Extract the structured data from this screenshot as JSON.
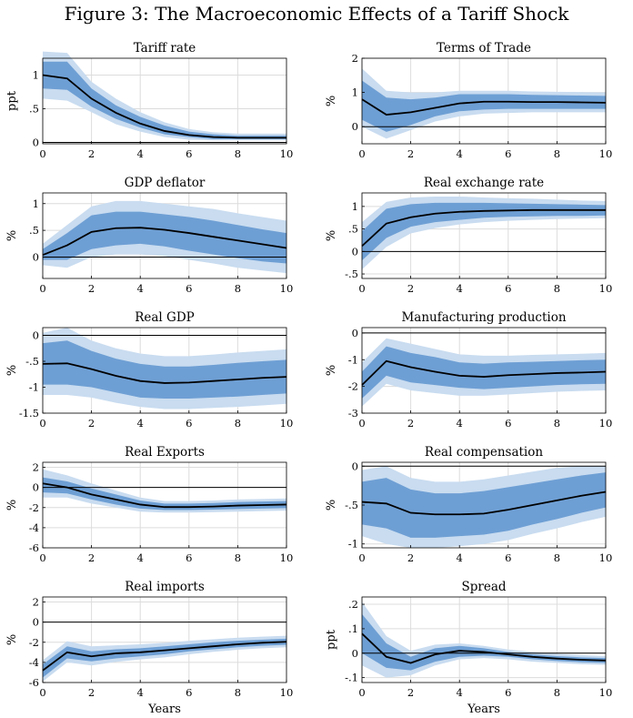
{
  "figure_title": "Figure 3: The Macroeconomic Effects of a Tariff Shock",
  "x_axis_label": "Years",
  "colors": {
    "outer_band": "#c9dcf0",
    "inner_band": "#6e9fd4",
    "line": "#000000",
    "zero_line": "#000000",
    "grid": "#dcdcdc"
  },
  "chart_data": [
    {
      "type": "line",
      "title": "Tariff rate",
      "ylabel": "ppt",
      "ylim": [
        -0.02,
        1.25
      ],
      "yticks": [
        0,
        0.5,
        1
      ],
      "xticks": [
        0,
        2,
        4,
        6,
        8,
        10
      ],
      "grid": true,
      "x": [
        0,
        1,
        2,
        3,
        4,
        5,
        6,
        7,
        8,
        9,
        10
      ],
      "median": [
        1.0,
        0.95,
        0.65,
        0.44,
        0.28,
        0.17,
        0.11,
        0.08,
        0.07,
        0.07,
        0.07
      ],
      "inner_band": {
        "lower": [
          0.8,
          0.78,
          0.53,
          0.35,
          0.22,
          0.12,
          0.08,
          0.05,
          0.05,
          0.05,
          0.05
        ],
        "upper": [
          1.2,
          1.2,
          0.8,
          0.55,
          0.38,
          0.25,
          0.16,
          0.12,
          0.1,
          0.1,
          0.1
        ]
      },
      "outer_band": {
        "lower": [
          0.65,
          0.62,
          0.45,
          0.27,
          0.16,
          0.08,
          0.04,
          0.03,
          0.03,
          0.03,
          0.03
        ],
        "upper": [
          1.35,
          1.33,
          0.9,
          0.65,
          0.45,
          0.3,
          0.2,
          0.15,
          0.13,
          0.13,
          0.13
        ]
      }
    },
    {
      "type": "line",
      "title": "Terms of Trade",
      "ylabel": "%",
      "ylim": [
        -0.5,
        2
      ],
      "yticks": [
        0,
        1,
        2
      ],
      "xticks": [
        0,
        2,
        4,
        6,
        8,
        10
      ],
      "grid": true,
      "x": [
        0,
        1,
        2,
        3,
        4,
        5,
        6,
        7,
        8,
        9,
        10
      ],
      "median": [
        0.8,
        0.35,
        0.42,
        0.55,
        0.68,
        0.73,
        0.73,
        0.72,
        0.72,
        0.71,
        0.7
      ],
      "inner_band": {
        "lower": [
          0.2,
          -0.15,
          0.05,
          0.3,
          0.45,
          0.5,
          0.52,
          0.52,
          0.52,
          0.52,
          0.52
        ],
        "upper": [
          1.35,
          0.85,
          0.8,
          0.85,
          0.95,
          0.95,
          0.95,
          0.93,
          0.92,
          0.91,
          0.9
        ]
      },
      "outer_band": {
        "lower": [
          0.0,
          -0.35,
          -0.1,
          0.15,
          0.3,
          0.38,
          0.4,
          0.42,
          0.42,
          0.42,
          0.42
        ],
        "upper": [
          1.7,
          1.05,
          1.0,
          1.0,
          1.05,
          1.05,
          1.05,
          1.03,
          1.02,
          1.01,
          1.0
        ]
      }
    },
    {
      "type": "line",
      "title": "GDP deflator",
      "ylabel": "%",
      "ylim": [
        -0.4,
        1.2
      ],
      "yticks": [
        0,
        0.5,
        1
      ],
      "xticks": [
        0,
        2,
        4,
        6,
        8,
        10
      ],
      "grid": true,
      "x": [
        0,
        1,
        2,
        3,
        4,
        5,
        6,
        7,
        8,
        9,
        10
      ],
      "median": [
        0.04,
        0.22,
        0.47,
        0.54,
        0.55,
        0.51,
        0.45,
        0.38,
        0.31,
        0.24,
        0.17
      ],
      "inner_band": {
        "lower": [
          -0.05,
          -0.05,
          0.15,
          0.22,
          0.25,
          0.2,
          0.12,
          0.05,
          -0.02,
          -0.08,
          -0.12
        ],
        "upper": [
          0.15,
          0.45,
          0.78,
          0.85,
          0.85,
          0.8,
          0.75,
          0.68,
          0.6,
          0.52,
          0.45
        ]
      },
      "outer_band": {
        "lower": [
          -0.15,
          -0.2,
          0.0,
          0.05,
          0.05,
          0.02,
          -0.05,
          -0.12,
          -0.2,
          -0.25,
          -0.3
        ],
        "upper": [
          0.25,
          0.6,
          0.95,
          1.05,
          1.05,
          1.0,
          0.95,
          0.9,
          0.82,
          0.75,
          0.68
        ]
      }
    },
    {
      "type": "line",
      "title": "Real exchange rate",
      "ylabel": "%",
      "ylim": [
        -0.6,
        1.3
      ],
      "yticks": [
        -0.5,
        0,
        0.5,
        1
      ],
      "xticks": [
        0,
        2,
        4,
        6,
        8,
        10
      ],
      "grid": true,
      "x": [
        0,
        1,
        2,
        3,
        4,
        5,
        6,
        7,
        8,
        9,
        10
      ],
      "median": [
        0.12,
        0.62,
        0.76,
        0.84,
        0.88,
        0.9,
        0.91,
        0.92,
        0.92,
        0.92,
        0.92
      ],
      "inner_band": {
        "lower": [
          -0.2,
          0.3,
          0.55,
          0.65,
          0.7,
          0.75,
          0.77,
          0.78,
          0.79,
          0.79,
          0.8
        ],
        "upper": [
          0.45,
          0.95,
          1.05,
          1.08,
          1.08,
          1.08,
          1.07,
          1.06,
          1.05,
          1.04,
          1.03
        ]
      },
      "outer_band": {
        "lower": [
          -0.4,
          0.1,
          0.4,
          0.52,
          0.6,
          0.65,
          0.68,
          0.7,
          0.72,
          0.73,
          0.74
        ],
        "upper": [
          0.65,
          1.1,
          1.2,
          1.22,
          1.22,
          1.2,
          1.18,
          1.17,
          1.15,
          1.13,
          1.12
        ]
      }
    },
    {
      "type": "line",
      "title": "Real GDP",
      "ylabel": "%",
      "ylim": [
        -1.5,
        0.15
      ],
      "yticks": [
        -1.5,
        -1,
        -0.5,
        0
      ],
      "xticks": [
        0,
        2,
        4,
        6,
        8,
        10
      ],
      "grid": true,
      "x": [
        0,
        1,
        2,
        3,
        4,
        5,
        6,
        7,
        8,
        9,
        10
      ],
      "median": [
        -0.55,
        -0.54,
        -0.65,
        -0.78,
        -0.88,
        -0.92,
        -0.91,
        -0.88,
        -0.85,
        -0.82,
        -0.8
      ],
      "inner_band": {
        "lower": [
          -0.95,
          -0.95,
          -1.0,
          -1.1,
          -1.2,
          -1.22,
          -1.22,
          -1.2,
          -1.18,
          -1.15,
          -1.12
        ],
        "upper": [
          -0.15,
          -0.1,
          -0.3,
          -0.45,
          -0.55,
          -0.6,
          -0.6,
          -0.57,
          -0.53,
          -0.5,
          -0.47
        ]
      },
      "outer_band": {
        "lower": [
          -1.15,
          -1.15,
          -1.2,
          -1.3,
          -1.38,
          -1.42,
          -1.42,
          -1.4,
          -1.38,
          -1.35,
          -1.32
        ],
        "upper": [
          0.05,
          0.15,
          -0.1,
          -0.25,
          -0.35,
          -0.4,
          -0.4,
          -0.37,
          -0.33,
          -0.3,
          -0.27
        ]
      }
    },
    {
      "type": "line",
      "title": "Manufacturing production",
      "ylabel": "%",
      "ylim": [
        -3,
        0.2
      ],
      "yticks": [
        -3,
        -2,
        -1,
        0
      ],
      "xticks": [
        0,
        2,
        4,
        6,
        8,
        10
      ],
      "grid": true,
      "x": [
        0,
        1,
        2,
        3,
        4,
        5,
        6,
        7,
        8,
        9,
        10
      ],
      "median": [
        -1.95,
        -1.05,
        -1.28,
        -1.45,
        -1.6,
        -1.64,
        -1.58,
        -1.54,
        -1.5,
        -1.48,
        -1.45
      ],
      "inner_band": {
        "lower": [
          -2.45,
          -1.6,
          -1.85,
          -1.95,
          -2.05,
          -2.1,
          -2.05,
          -2.0,
          -1.95,
          -1.92,
          -1.9
        ],
        "upper": [
          -1.45,
          -0.5,
          -0.75,
          -0.9,
          -1.1,
          -1.15,
          -1.1,
          -1.08,
          -1.05,
          -1.02,
          -1.0
        ]
      },
      "outer_band": {
        "lower": [
          -2.75,
          -1.9,
          -2.15,
          -2.25,
          -2.35,
          -2.35,
          -2.3,
          -2.25,
          -2.2,
          -2.17,
          -2.15
        ],
        "upper": [
          -1.1,
          -0.2,
          -0.4,
          -0.6,
          -0.8,
          -0.85,
          -0.85,
          -0.82,
          -0.8,
          -0.78,
          -0.75
        ]
      }
    },
    {
      "type": "line",
      "title": "Real Exports",
      "ylabel": "%",
      "ylim": [
        -6,
        2.5
      ],
      "yticks": [
        -6,
        -4,
        -2,
        0,
        2
      ],
      "xticks": [
        0,
        2,
        4,
        6,
        8,
        10
      ],
      "grid": true,
      "x": [
        0,
        1,
        2,
        3,
        4,
        5,
        6,
        7,
        8,
        9,
        10
      ],
      "median": [
        0.4,
        0.0,
        -0.7,
        -1.2,
        -1.7,
        -1.95,
        -1.95,
        -1.9,
        -1.8,
        -1.75,
        -1.7
      ],
      "inner_band": {
        "lower": [
          -0.5,
          -0.6,
          -1.2,
          -1.7,
          -2.1,
          -2.25,
          -2.25,
          -2.2,
          -2.15,
          -2.1,
          -2.05
        ],
        "upper": [
          1.0,
          0.6,
          -0.1,
          -0.7,
          -1.3,
          -1.6,
          -1.6,
          -1.55,
          -1.45,
          -1.4,
          -1.35
        ]
      },
      "outer_band": {
        "lower": [
          -1.0,
          -1.0,
          -1.6,
          -2.0,
          -2.4,
          -2.5,
          -2.5,
          -2.45,
          -2.4,
          -2.35,
          -2.3
        ],
        "upper": [
          1.8,
          1.2,
          0.4,
          -0.3,
          -1.0,
          -1.35,
          -1.35,
          -1.3,
          -1.2,
          -1.15,
          -1.1
        ]
      }
    },
    {
      "type": "line",
      "title": "Real compensation",
      "ylabel": "%",
      "ylim": [
        -1.05,
        0.05
      ],
      "yticks": [
        -1,
        -0.5,
        0
      ],
      "xticks": [
        0,
        2,
        4,
        6,
        8,
        10
      ],
      "grid": true,
      "x": [
        0,
        1,
        2,
        3,
        4,
        5,
        6,
        7,
        8,
        9,
        10
      ],
      "median": [
        -0.46,
        -0.48,
        -0.6,
        -0.62,
        -0.62,
        -0.61,
        -0.56,
        -0.5,
        -0.44,
        -0.38,
        -0.33
      ],
      "inner_band": {
        "lower": [
          -0.75,
          -0.8,
          -0.92,
          -0.92,
          -0.9,
          -0.88,
          -0.83,
          -0.75,
          -0.68,
          -0.6,
          -0.53
        ],
        "upper": [
          -0.2,
          -0.15,
          -0.3,
          -0.35,
          -0.35,
          -0.32,
          -0.27,
          -0.22,
          -0.17,
          -0.12,
          -0.08
        ]
      },
      "outer_band": {
        "lower": [
          -0.9,
          -1.0,
          -1.05,
          -1.05,
          -1.03,
          -1.0,
          -0.95,
          -0.87,
          -0.8,
          -0.72,
          -0.65
        ],
        "upper": [
          -0.05,
          0.0,
          -0.15,
          -0.2,
          -0.2,
          -0.17,
          -0.12,
          -0.07,
          -0.02,
          0.0,
          0.0
        ]
      }
    },
    {
      "type": "line",
      "title": "Real imports",
      "ylabel": "%",
      "ylim": [
        -6,
        2.5
      ],
      "yticks": [
        -6,
        -4,
        -2,
        0,
        2
      ],
      "xticks": [
        0,
        2,
        4,
        6,
        8,
        10
      ],
      "grid": true,
      "x": [
        0,
        1,
        2,
        3,
        4,
        5,
        6,
        7,
        8,
        9,
        10
      ],
      "median": [
        -4.8,
        -3.0,
        -3.4,
        -3.1,
        -3.0,
        -2.8,
        -2.6,
        -2.4,
        -2.2,
        -2.05,
        -1.95
      ],
      "inner_band": {
        "lower": [
          -5.5,
          -3.6,
          -3.9,
          -3.6,
          -3.4,
          -3.2,
          -2.9,
          -2.7,
          -2.5,
          -2.35,
          -2.25
        ],
        "upper": [
          -4.2,
          -2.4,
          -2.9,
          -2.7,
          -2.6,
          -2.4,
          -2.2,
          -2.0,
          -1.85,
          -1.75,
          -1.65
        ]
      },
      "outer_band": {
        "lower": [
          -5.9,
          -4.0,
          -4.3,
          -3.95,
          -3.7,
          -3.5,
          -3.2,
          -2.95,
          -2.75,
          -2.6,
          -2.5
        ],
        "upper": [
          -3.8,
          -1.9,
          -2.4,
          -2.3,
          -2.2,
          -2.05,
          -1.85,
          -1.7,
          -1.55,
          -1.45,
          -1.35
        ]
      }
    },
    {
      "type": "line",
      "title": "Spread",
      "ylabel": "ppt",
      "ylim": [
        -0.12,
        0.23
      ],
      "yticks": [
        -0.1,
        0,
        0.1,
        0.2
      ],
      "xticks": [
        0,
        2,
        4,
        6,
        8,
        10
      ],
      "grid": true,
      "x": [
        0,
        1,
        2,
        3,
        4,
        5,
        6,
        7,
        8,
        9,
        10
      ],
      "median": [
        0.08,
        -0.015,
        -0.04,
        -0.005,
        0.01,
        0.005,
        -0.005,
        -0.015,
        -0.022,
        -0.027,
        -0.03
      ],
      "inner_band": {
        "lower": [
          0.0,
          -0.06,
          -0.07,
          -0.035,
          -0.015,
          -0.01,
          -0.015,
          -0.025,
          -0.032,
          -0.037,
          -0.04
        ],
        "upper": [
          0.16,
          0.04,
          -0.015,
          0.02,
          0.03,
          0.02,
          0.005,
          -0.005,
          -0.012,
          -0.017,
          -0.02
        ]
      },
      "outer_band": {
        "lower": [
          -0.05,
          -0.1,
          -0.09,
          -0.05,
          -0.025,
          -0.02,
          -0.025,
          -0.035,
          -0.04,
          -0.045,
          -0.048
        ],
        "upper": [
          0.21,
          0.07,
          0.01,
          0.035,
          0.04,
          0.03,
          0.015,
          0.005,
          -0.003,
          -0.008,
          -0.012
        ]
      }
    }
  ]
}
